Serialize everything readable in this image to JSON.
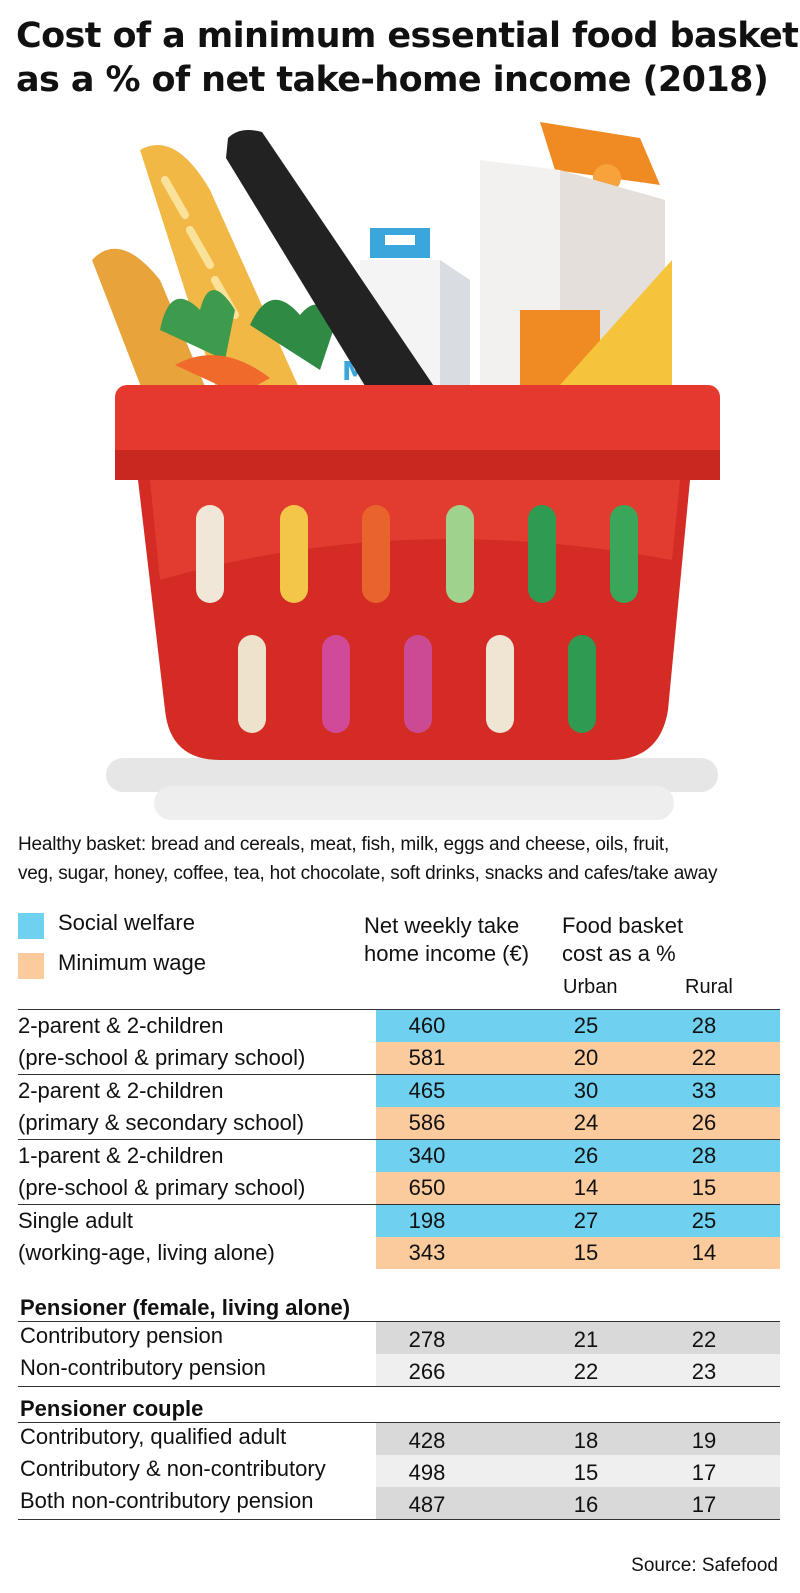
{
  "title": {
    "line1": "Cost of a minimum essential food basket",
    "line2": "as a % of net take-home income  (2018)"
  },
  "description": {
    "line1": "Healthy basket: bread and cereals, meat, fish, milk, eggs and cheese, oils, fruit,",
    "line2": "veg, sugar, honey, coffee, tea, hot chocolate, soft drinks, snacks and cafes/take away"
  },
  "illustration": {
    "icon": "shopping-basket-icon",
    "label": "MILK"
  },
  "legend": {
    "social_welfare": {
      "label": "Social welfare",
      "color": "#6fd0f0"
    },
    "minimum_wage": {
      "label": "Minimum wage",
      "color": "#fbcb9e"
    }
  },
  "headers": {
    "income_line1": "Net weekly take",
    "income_line2": "home income (€)",
    "cost_line1": "Food basket",
    "cost_line2": "cost as a %",
    "urban": "Urban",
    "rural": "Rural"
  },
  "chart_data": {
    "type": "table",
    "title": "Cost of a minimum essential food basket as a % of net take-home income  (2018)",
    "columns": [
      "Net weekly take home income (€)",
      "Urban",
      "Rural"
    ],
    "households": [
      {
        "label1": "2-parent & 2-children",
        "label2": "(pre-school & primary school)",
        "social_welfare": {
          "income": 460,
          "urban": 25,
          "rural": 28
        },
        "minimum_wage": {
          "income": 581,
          "urban": 20,
          "rural": 22
        }
      },
      {
        "label1": "2-parent & 2-children",
        "label2": "(primary & secondary school)",
        "social_welfare": {
          "income": 465,
          "urban": 30,
          "rural": 33
        },
        "minimum_wage": {
          "income": 586,
          "urban": 24,
          "rural": 26
        }
      },
      {
        "label1": "1-parent & 2-children",
        "label2": "(pre-school & primary school)",
        "social_welfare": {
          "income": 340,
          "urban": 26,
          "rural": 28
        },
        "minimum_wage": {
          "income": 650,
          "urban": 14,
          "rural": 15
        }
      },
      {
        "label1": "Single adult",
        "label2": "(working-age, living alone)",
        "social_welfare": {
          "income": 198,
          "urban": 27,
          "rural": 25
        },
        "minimum_wage": {
          "income": 343,
          "urban": 15,
          "rural": 14
        }
      }
    ],
    "pensioner_groups": [
      {
        "title": "Pensioner (female, living alone)",
        "rows": [
          {
            "label": "Contributory pension",
            "income": 278,
            "urban": 21,
            "rural": 22
          },
          {
            "label": "Non-contributory pension",
            "income": 266,
            "urban": 22,
            "rural": 23
          }
        ]
      },
      {
        "title": "Pensioner couple",
        "rows": [
          {
            "label": "Contributory, qualified adult",
            "income": 428,
            "urban": 18,
            "rural": 19
          },
          {
            "label": "Contributory & non-contributory",
            "income": 498,
            "urban": 15,
            "rural": 17
          },
          {
            "label": "Both non-contributory pension",
            "income": 487,
            "urban": 16,
            "rural": 17
          }
        ]
      }
    ],
    "colors": {
      "social_welfare": "#6fd0f0",
      "minimum_wage": "#fbcb9e",
      "pension_dark": "#d9d9d9",
      "pension_light": "#efefef"
    }
  },
  "source": "Source: Safefood"
}
